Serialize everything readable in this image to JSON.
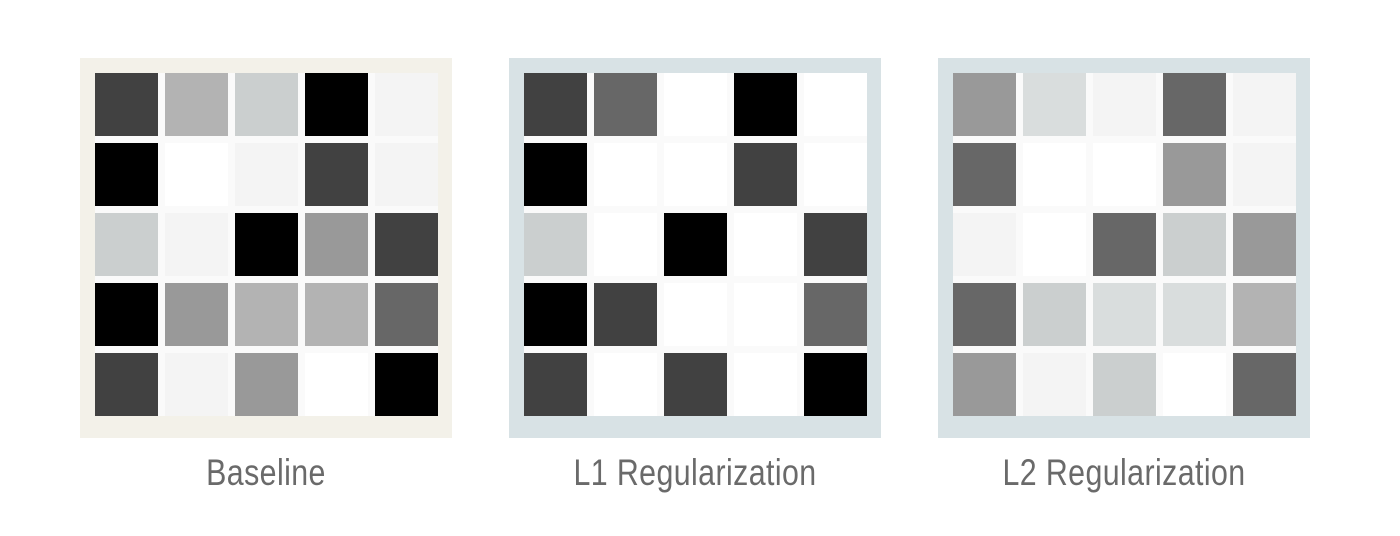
{
  "panels": [
    {
      "id": "baseline",
      "label": "Baseline",
      "frame_color": "#f3f1e9",
      "grid": [
        [
          "#414141",
          "#b3b3b3",
          "#cbcfcf",
          "#000000",
          "#f4f4f4"
        ],
        [
          "#000000",
          "#ffffff",
          "#f4f4f4",
          "#414141",
          "#f4f4f4"
        ],
        [
          "#cbcfcf",
          "#f4f4f4",
          "#000000",
          "#999999",
          "#414141"
        ],
        [
          "#000000",
          "#999999",
          "#b3b3b3",
          "#b3b3b3",
          "#676767"
        ],
        [
          "#414141",
          "#f4f4f4",
          "#999999",
          "#ffffff",
          "#000000"
        ]
      ]
    },
    {
      "id": "l1",
      "label": "L1 Regularization",
      "frame_color": "#d8e2e5",
      "grid": [
        [
          "#414141",
          "#676767",
          "#ffffff",
          "#000000",
          "#ffffff"
        ],
        [
          "#000000",
          "#ffffff",
          "#ffffff",
          "#414141",
          "#ffffff"
        ],
        [
          "#cbcfcf",
          "#ffffff",
          "#000000",
          "#ffffff",
          "#414141"
        ],
        [
          "#000000",
          "#414141",
          "#ffffff",
          "#ffffff",
          "#676767"
        ],
        [
          "#414141",
          "#ffffff",
          "#414141",
          "#ffffff",
          "#000000"
        ]
      ]
    },
    {
      "id": "l2",
      "label": "L2 Regularization",
      "frame_color": "#d8e2e5",
      "grid": [
        [
          "#999999",
          "#d9dddd",
          "#f4f4f4",
          "#676767",
          "#f4f4f4"
        ],
        [
          "#676767",
          "#ffffff",
          "#ffffff",
          "#999999",
          "#f4f4f4"
        ],
        [
          "#f4f4f4",
          "#ffffff",
          "#676767",
          "#cbcfcf",
          "#999999"
        ],
        [
          "#676767",
          "#cbcfcf",
          "#d9dddd",
          "#d9dddd",
          "#b3b3b3"
        ],
        [
          "#999999",
          "#f4f4f4",
          "#cbcfcf",
          "#ffffff",
          "#676767"
        ]
      ]
    }
  ]
}
